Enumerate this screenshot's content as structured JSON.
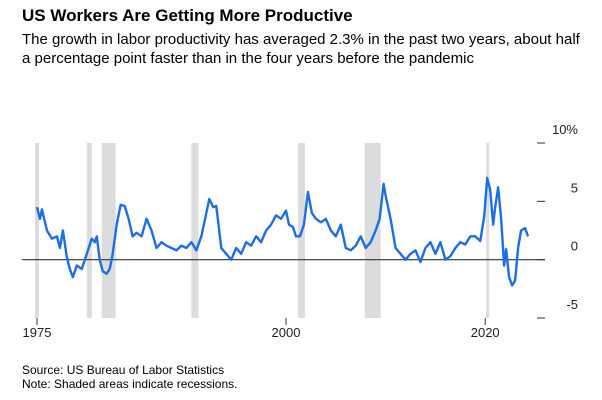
{
  "chart_data": {
    "type": "line",
    "title": "US Workers Are Getting More Productive",
    "subtitle": "The growth in labor productivity has averaged 2.3% in the past two years, about half a percentage point faster than in the four years before the pandemic",
    "source": "Source: US Bureau of Labor Statistics",
    "note": "Note: Shaded areas indicate recessions.",
    "x": [
      1975,
      1975.3,
      1975.5,
      1976,
      1976.5,
      1977,
      1977.3,
      1977.6,
      1978,
      1978.3,
      1978.6,
      1979,
      1979.5,
      1980,
      1980.5,
      1980.8,
      1981,
      1981.3,
      1981.6,
      1982,
      1982.3,
      1982.6,
      1983,
      1983.4,
      1983.8,
      1984.2,
      1984.6,
      1985,
      1985.5,
      1986,
      1986.5,
      1987,
      1987.5,
      1988,
      1988.5,
      1989,
      1989.5,
      1990,
      1990.5,
      1991,
      1991.5,
      1992,
      1992.3,
      1992.7,
      1993,
      1993.5,
      1994,
      1994.5,
      1995,
      1995.5,
      1996,
      1996.5,
      1997,
      1997.5,
      1998,
      1998.5,
      1999,
      1999.5,
      2000,
      2000.3,
      2000.7,
      2001,
      2001.4,
      2001.8,
      2002.2,
      2002.6,
      2003,
      2003.5,
      2004,
      2004.5,
      2005,
      2005.5,
      2006,
      2006.5,
      2007,
      2007.5,
      2008,
      2008.5,
      2009,
      2009.4,
      2009.8,
      2010,
      2010.5,
      2011,
      2011.5,
      2012,
      2012.5,
      2013,
      2013.5,
      2014,
      2014.5,
      2015,
      2015.5,
      2016,
      2016.5,
      2017,
      2017.5,
      2018,
      2018.5,
      2019,
      2019.5,
      2019.9,
      2020.2,
      2020.5,
      2020.8,
      2021,
      2021.3,
      2021.6,
      2021.9,
      2022.1,
      2022.4,
      2022.7,
      2023,
      2023.3,
      2023.6,
      2024,
      2024.3
    ],
    "series": [
      {
        "color": "#1a6fe8",
        "values": [
          4.5,
          3.5,
          4.3,
          2.5,
          1.8,
          2.0,
          1.0,
          2.5,
          0.2,
          -0.8,
          -1.5,
          -0.5,
          -0.8,
          0.5,
          1.8,
          1.5,
          2.0,
          0.0,
          -1.0,
          -1.2,
          -0.8,
          0.5,
          3.0,
          4.7,
          4.6,
          3.5,
          2.0,
          2.3,
          2.0,
          3.5,
          2.5,
          1.0,
          1.5,
          1.2,
          1.0,
          0.8,
          1.2,
          1.0,
          1.5,
          0.8,
          2.0,
          4.0,
          5.2,
          4.5,
          4.6,
          1.0,
          0.5,
          0.0,
          1.0,
          0.5,
          1.5,
          1.2,
          2.0,
          1.5,
          2.5,
          3.0,
          3.8,
          3.5,
          4.2,
          3.0,
          2.8,
          2.0,
          2.0,
          3.0,
          5.8,
          4.0,
          3.5,
          3.2,
          3.5,
          2.5,
          2.0,
          3.0,
          1.0,
          0.8,
          1.2,
          2.0,
          1.0,
          1.5,
          2.5,
          3.5,
          6.5,
          5.5,
          3.5,
          1.0,
          0.5,
          0.0,
          0.5,
          0.8,
          -0.2,
          1.0,
          1.5,
          0.5,
          1.5,
          0.0,
          0.3,
          1.0,
          1.5,
          1.3,
          2.0,
          2.0,
          1.6,
          3.7,
          7.0,
          6.0,
          3.0,
          4.5,
          6.2,
          3.5,
          -0.5,
          0.9,
          -1.5,
          -2.2,
          -1.8,
          1.0,
          2.5,
          2.7,
          2.0
        ]
      }
    ],
    "recessions": [
      [
        1973.9,
        1975.2
      ],
      [
        1980.0,
        1980.5
      ],
      [
        1981.5,
        1982.9
      ],
      [
        1990.5,
        1991.2
      ],
      [
        2001.2,
        2001.9
      ],
      [
        2007.9,
        2009.5
      ],
      [
        2020.1,
        2020.4
      ]
    ],
    "recession_color": "#dcdcdc",
    "xlim": [
      1974.8,
      2025.2
    ],
    "xticks": [
      1975,
      2000,
      2020
    ],
    "ylim": [
      -5,
      10
    ],
    "yticks": [
      {
        "value": 10,
        "label": "10%"
      },
      5,
      0,
      -5
    ]
  }
}
